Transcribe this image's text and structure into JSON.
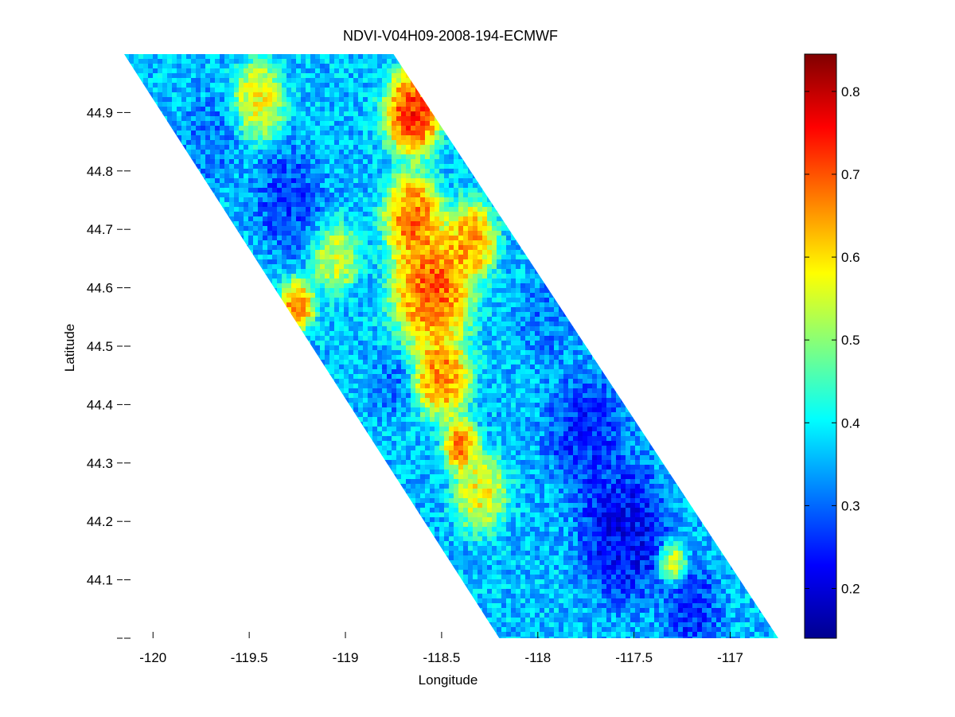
{
  "chart_data": {
    "type": "heatmap",
    "title": "NDVI-V04H09-2008-194-ECMWF",
    "xlabel": "Longitude",
    "ylabel": "Latitude",
    "xlim": [
      -120.15,
      -116.75
    ],
    "ylim": [
      44.0,
      45.0
    ],
    "x_ticks": [
      -120,
      -119.5,
      -119,
      -118.5,
      -118,
      -117.5,
      -117
    ],
    "x_tick_labels": [
      "-120",
      "-119.5",
      "-119",
      "-118.5",
      "-118",
      "-117.5",
      "-117"
    ],
    "y_ticks": [
      44.0,
      44.1,
      44.2,
      44.3,
      44.4,
      44.5,
      44.6,
      44.7,
      44.8,
      44.9
    ],
    "y_tick_labels": [
      "",
      "44.1",
      "44.2",
      "44.3",
      "44.4",
      "44.5",
      "44.6",
      "44.7",
      "44.8",
      "44.9"
    ],
    "swath_corners": [
      [
        -120.15,
        45.0
      ],
      [
        -118.75,
        45.0
      ],
      [
        -116.75,
        44.0
      ],
      [
        -118.2,
        44.0
      ]
    ],
    "colormap": "jet",
    "colorbar": {
      "range": [
        0.14,
        0.845
      ],
      "ticks": [
        0.2,
        0.3,
        0.4,
        0.5,
        0.6,
        0.7,
        0.8
      ],
      "tick_labels": [
        "0.2",
        "0.3",
        "0.4",
        "0.5",
        "0.6",
        "0.7",
        "0.8"
      ]
    },
    "grid": false,
    "regions": [
      {
        "lon": -118.65,
        "lat": 44.9,
        "ndvi": 0.8,
        "radius": 0.1
      },
      {
        "lon": -118.55,
        "lat": 44.6,
        "ndvi": 0.76,
        "radius": 0.14
      },
      {
        "lon": -118.5,
        "lat": 44.45,
        "ndvi": 0.72,
        "radius": 0.1
      },
      {
        "lon": -118.65,
        "lat": 44.72,
        "ndvi": 0.74,
        "radius": 0.1
      },
      {
        "lon": -118.4,
        "lat": 44.33,
        "ndvi": 0.74,
        "radius": 0.06
      },
      {
        "lon": -119.25,
        "lat": 44.57,
        "ndvi": 0.72,
        "radius": 0.06
      },
      {
        "lon": -118.35,
        "lat": 44.68,
        "ndvi": 0.7,
        "radius": 0.09
      },
      {
        "lon": -118.3,
        "lat": 44.25,
        "ndvi": 0.62,
        "radius": 0.09
      },
      {
        "lon": -119.45,
        "lat": 44.92,
        "ndvi": 0.62,
        "radius": 0.09
      },
      {
        "lon": -119.05,
        "lat": 44.65,
        "ndvi": 0.58,
        "radius": 0.08
      },
      {
        "lon": -117.3,
        "lat": 44.13,
        "ndvi": 0.6,
        "radius": 0.05
      },
      {
        "lon": -119.3,
        "lat": 44.75,
        "ndvi": 0.26,
        "radius": 0.12
      },
      {
        "lon": -119.7,
        "lat": 44.85,
        "ndvi": 0.3,
        "radius": 0.1
      },
      {
        "lon": -118.75,
        "lat": 44.43,
        "ndvi": 0.3,
        "radius": 0.07
      },
      {
        "lon": -117.75,
        "lat": 44.35,
        "ndvi": 0.24,
        "radius": 0.14
      },
      {
        "lon": -117.55,
        "lat": 44.18,
        "ndvi": 0.2,
        "radius": 0.16
      },
      {
        "lon": -117.2,
        "lat": 44.05,
        "ndvi": 0.24,
        "radius": 0.1
      },
      {
        "lon": -117.95,
        "lat": 44.55,
        "ndvi": 0.3,
        "radius": 0.1
      }
    ],
    "background_ndvi": 0.36
  }
}
